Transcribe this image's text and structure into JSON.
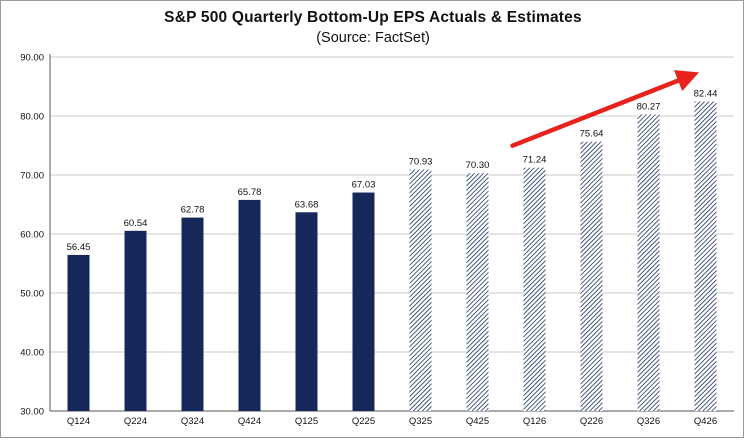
{
  "chart_data": {
    "type": "bar",
    "title": "S&P 500 Quarterly Bottom-Up EPS Actuals & Estimates",
    "subtitle": "(Source: FactSet)",
    "xlabel": "",
    "ylabel": "",
    "ylim": [
      30,
      90
    ],
    "yticks": [
      "30.00",
      "40.00",
      "50.00",
      "60.00",
      "70.00",
      "80.00",
      "90.00"
    ],
    "grid": true,
    "categories": [
      "Q124",
      "Q224",
      "Q324",
      "Q424",
      "Q125",
      "Q225",
      "Q325",
      "Q425",
      "Q126",
      "Q226",
      "Q326",
      "Q426"
    ],
    "values": [
      56.45,
      60.54,
      62.78,
      65.78,
      63.68,
      67.03,
      70.93,
      70.3,
      71.24,
      75.64,
      80.27,
      82.44
    ],
    "value_labels": [
      "56.45",
      "60.54",
      "62.78",
      "65.78",
      "63.68",
      "67.03",
      "70.93",
      "70.30",
      "71.24",
      "75.64",
      "80.27",
      "82.44"
    ],
    "status": [
      "actual",
      "actual",
      "actual",
      "actual",
      "actual",
      "actual",
      "estimate",
      "estimate",
      "estimate",
      "estimate",
      "estimate",
      "estimate"
    ],
    "annotations": [
      {
        "kind": "arrow",
        "meaning": "upward trend",
        "color": "#e8231d"
      }
    ],
    "colors": {
      "actual": "#16285a",
      "estimate": "#2a3f6e",
      "gridline": "#c8c8c8",
      "arrow": "#e8231d"
    }
  }
}
